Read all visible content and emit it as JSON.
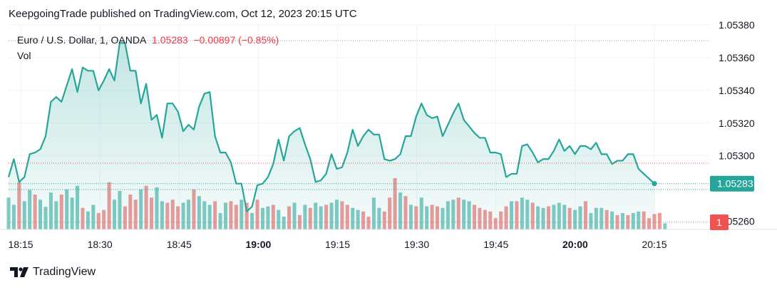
{
  "header": {
    "publisher": "KeepgoingTrade published on TradingView.com, Oct 12, 2023 20:15 UTC"
  },
  "legend": {
    "symbol": "Euro / U.S. Dollar, 1, OANDA",
    "price": "1.05283",
    "change": "−0.00897 (−0.85%)",
    "volume_label": "Vol"
  },
  "footer": {
    "brand": "TradingView"
  },
  "colors": {
    "line": "#26a69a",
    "fill_top": "#26a69a",
    "up": "#80cbc4",
    "down": "#ef9a9a",
    "price_tag": "#26a69a",
    "vol_tag": "#ef5350"
  },
  "chart_data": {
    "type": "area",
    "title": "",
    "xlabel": "",
    "ylabel": "",
    "ylim": [
      1.05255,
      1.0538
    ],
    "x_ticks": [
      "18:15",
      "18:30",
      "18:45",
      "19:00",
      "19:15",
      "19:30",
      "19:45",
      "20:00",
      "20:15"
    ],
    "x_tick_bold": [
      false,
      false,
      false,
      true,
      false,
      false,
      false,
      true,
      false
    ],
    "y_ticks": [
      "1.05380",
      "1.05360",
      "1.05340",
      "1.05320",
      "1.05300",
      "1.05260"
    ],
    "last_price_tag": "1.05283",
    "volume_tag": "1",
    "series": [
      {
        "values": [
          1.05287,
          1.05298,
          1.05284,
          1.05287,
          1.05301,
          1.05302,
          1.05304,
          1.05312,
          1.05333,
          1.05336,
          1.05333,
          1.05343,
          1.05353,
          1.05339,
          1.05354,
          1.05352,
          1.05352,
          1.0534,
          1.05346,
          1.05353,
          1.05346,
          1.05369,
          1.05369,
          1.05352,
          1.05352,
          1.05332,
          1.05344,
          1.05322,
          1.05325,
          1.05311,
          1.05332,
          1.05332,
          1.05327,
          1.05315,
          1.05319,
          1.05316,
          1.0533,
          1.05338,
          1.05339,
          1.05312,
          1.05302,
          1.05302,
          1.05296,
          1.05283,
          1.05283,
          1.05266,
          1.05269,
          1.05282,
          1.05283,
          1.05287,
          1.05295,
          1.0531,
          1.05297,
          1.05312,
          1.05315,
          1.05317,
          1.05307,
          1.05298,
          1.05284,
          1.05285,
          1.05289,
          1.05301,
          1.05292,
          1.05293,
          1.05302,
          1.05316,
          1.05306,
          1.05312,
          1.05316,
          1.05313,
          1.05313,
          1.05298,
          1.05297,
          1.05298,
          1.05301,
          1.05312,
          1.05312,
          1.05324,
          1.05332,
          1.05325,
          1.05323,
          1.05324,
          1.05312,
          1.05319,
          1.05326,
          1.05332,
          1.05322,
          1.05318,
          1.05314,
          1.05311,
          1.05311,
          1.05302,
          1.05302,
          1.05301,
          1.05287,
          1.05289,
          1.05289,
          1.05306,
          1.05307,
          1.05302,
          1.05296,
          1.05298,
          1.05298,
          1.05303,
          1.0531,
          1.05303,
          1.05306,
          1.05301,
          1.05306,
          1.05306,
          1.05304,
          1.05308,
          1.05301,
          1.05301,
          1.05295,
          1.05297,
          1.05297,
          1.05301,
          1.05301,
          1.05292,
          1.05289,
          1.05286,
          1.05283
        ]
      },
      {
        "name": "Vol",
        "values": [
          0.62,
          0.48,
          0.92,
          0.55,
          0.77,
          0.68,
          0.58,
          0.44,
          0.72,
          0.55,
          0.68,
          0.78,
          0.62,
          0.85,
          0.42,
          0.35,
          0.48,
          0.32,
          0.38,
          0.92,
          0.58,
          0.75,
          0.45,
          0.68,
          0.58,
          0.78,
          0.85,
          0.62,
          0.82,
          0.55,
          0.52,
          0.58,
          0.45,
          0.52,
          0.58,
          0.78,
          0.65,
          0.55,
          0.48,
          0.55,
          0.32,
          0.52,
          0.55,
          0.48,
          0.58,
          0.52,
          0.32,
          0.58,
          0.42,
          0.45,
          0.48,
          0.38,
          0.25,
          0.45,
          0.52,
          0.28,
          0.48,
          0.42,
          0.52,
          0.45,
          0.48,
          0.52,
          0.58,
          0.55,
          0.48,
          0.42,
          0.38,
          0.35,
          0.25,
          0.62,
          0.42,
          0.35,
          0.62,
          1.0,
          0.72,
          0.65,
          0.48,
          0.45,
          0.62,
          0.45,
          0.48,
          0.45,
          0.42,
          0.55,
          0.58,
          0.62,
          0.58,
          0.55,
          0.48,
          0.42,
          0.38,
          0.35,
          0.22,
          0.35,
          0.45,
          0.55,
          0.55,
          0.62,
          0.58,
          0.52,
          0.45,
          0.42,
          0.45,
          0.48,
          0.52,
          0.48,
          0.42,
          0.38,
          0.45,
          0.55,
          0.32,
          0.42,
          0.42,
          0.38,
          0.35,
          0.28,
          0.32,
          0.28,
          0.32,
          0.35,
          0.35,
          0.22,
          0.3,
          0.32,
          0.12
        ],
        "up": [
          true,
          true,
          false,
          true,
          true,
          false,
          true,
          true,
          true,
          true,
          false,
          true,
          true,
          true,
          false,
          true,
          true,
          false,
          false,
          false,
          true,
          true,
          false,
          false,
          false,
          true,
          false,
          false,
          true,
          true,
          false,
          false,
          false,
          true,
          true,
          false,
          true,
          true,
          true,
          false,
          true,
          true,
          false,
          false,
          true,
          false,
          true,
          false,
          true,
          true,
          false,
          true,
          true,
          false,
          true,
          false,
          true,
          false,
          true,
          true,
          false,
          true,
          true,
          false,
          false,
          true,
          true,
          false,
          false,
          true,
          true,
          false,
          false,
          false,
          true,
          false,
          true,
          false,
          true,
          true,
          false,
          false,
          true,
          true,
          true,
          false,
          true,
          true,
          false,
          false,
          false,
          false,
          false,
          false,
          false,
          true,
          false,
          true,
          true,
          false,
          true,
          true,
          false,
          true,
          true,
          true,
          false,
          true,
          true,
          false,
          true,
          true,
          true,
          false,
          true,
          false,
          true,
          false,
          true,
          true,
          false,
          false,
          false,
          false,
          true
        ]
      }
    ]
  }
}
